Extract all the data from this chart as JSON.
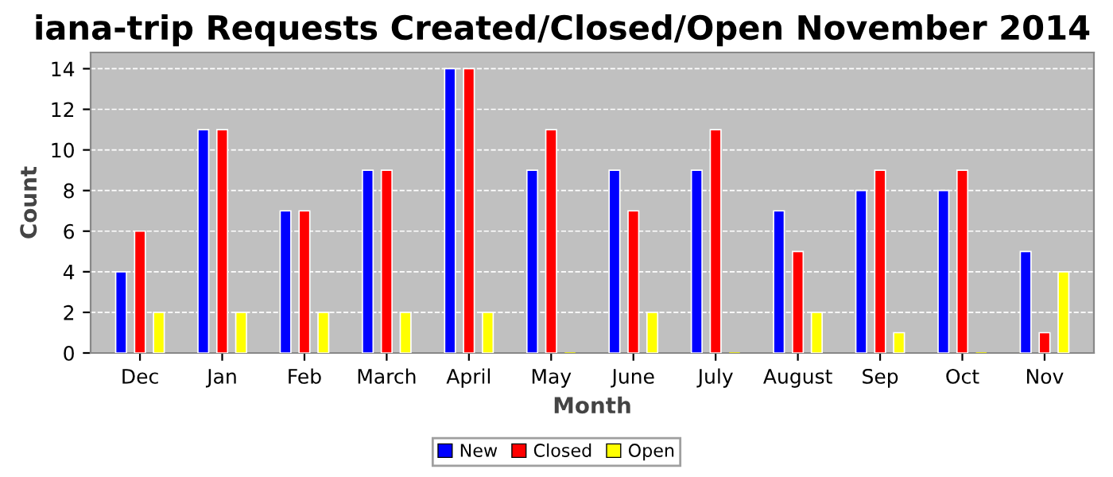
{
  "chart_data": {
    "type": "bar",
    "title": "iana-trip Requests Created/Closed/Open November 2014",
    "xlabel": "Month",
    "ylabel": "Count",
    "categories": [
      "Dec",
      "Jan",
      "Feb",
      "March",
      "April",
      "May",
      "June",
      "July",
      "August",
      "Sep",
      "Oct",
      "Nov"
    ],
    "series": [
      {
        "name": "New",
        "color": "#0000ff",
        "values": [
          4,
          11,
          7,
          9,
          14,
          9,
          9,
          9,
          7,
          8,
          8,
          5
        ]
      },
      {
        "name": "Closed",
        "color": "#ff0000",
        "values": [
          6,
          11,
          7,
          9,
          14,
          11,
          7,
          11,
          5,
          9,
          9,
          1
        ]
      },
      {
        "name": "Open",
        "color": "#ffff00",
        "values": [
          2,
          2,
          2,
          2,
          2,
          0,
          2,
          0,
          2,
          1,
          0,
          4
        ]
      }
    ],
    "ylim": [
      0,
      14.8
    ],
    "yticks": [
      0,
      2,
      4,
      6,
      8,
      10,
      12,
      14
    ],
    "grid": "y",
    "legend": "bottom"
  }
}
